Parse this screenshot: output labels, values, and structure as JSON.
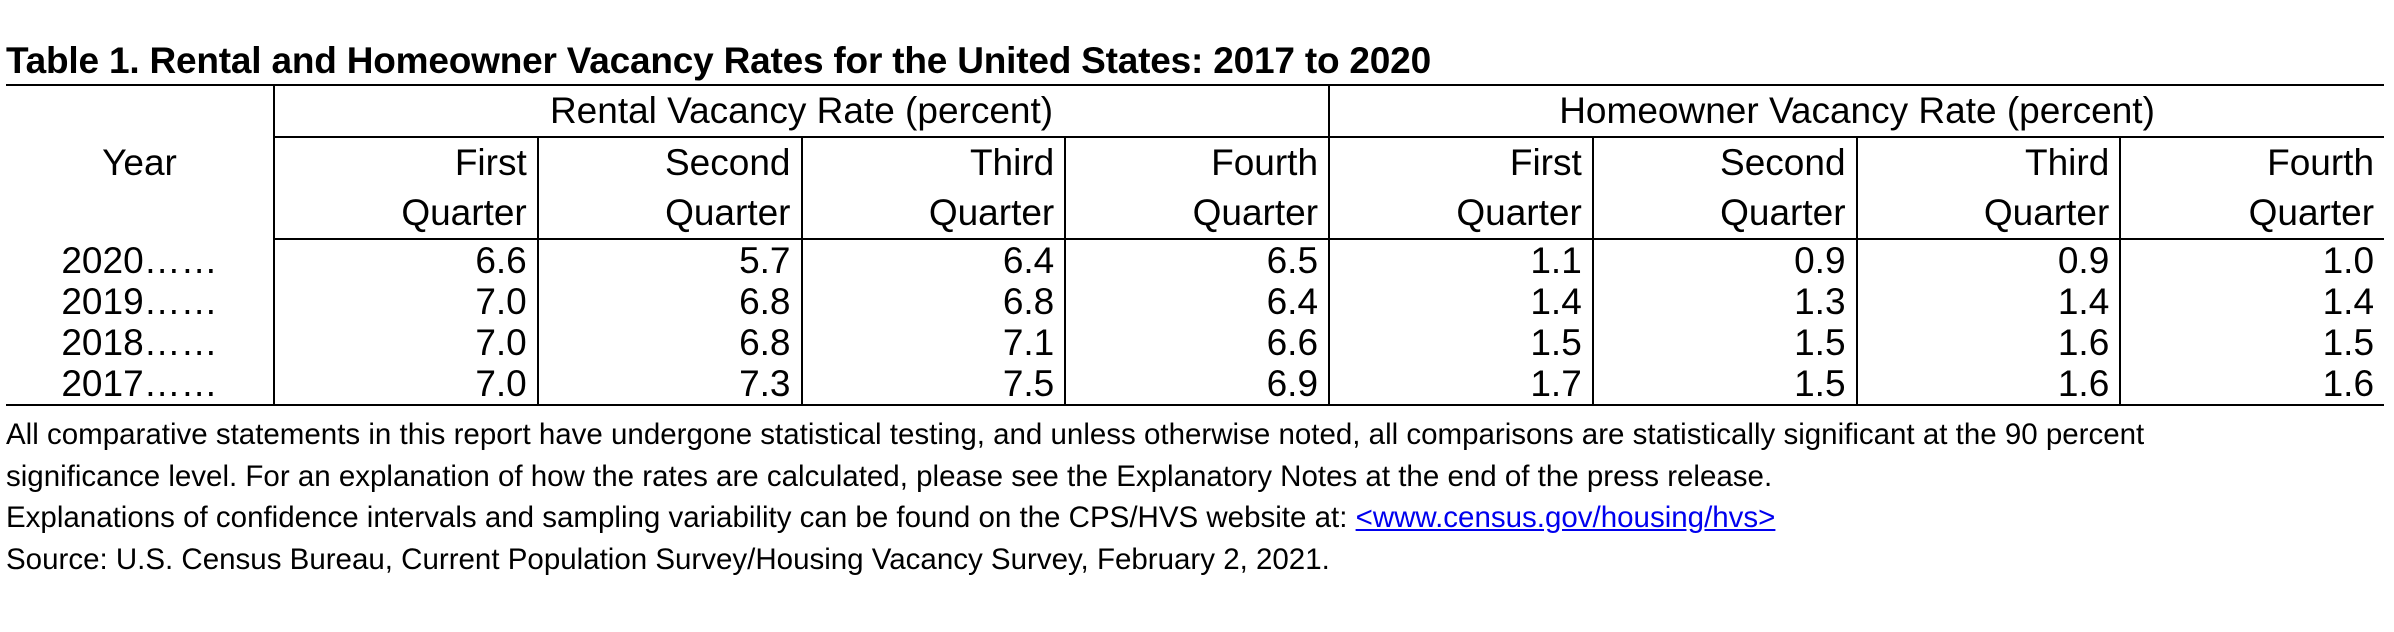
{
  "chart_data": {
    "type": "table",
    "title": "Table 1. Rental and Homeowner Vacancy Rates for the United States: 2017 to 2020",
    "year_header": "Year",
    "groups": [
      {
        "label": "Rental Vacancy Rate (percent)"
      },
      {
        "label": "Homeowner Vacancy Rate (percent)"
      }
    ],
    "quarters": [
      {
        "line1": "First",
        "line2": "Quarter"
      },
      {
        "line1": "Second",
        "line2": "Quarter"
      },
      {
        "line1": "Third",
        "line2": "Quarter"
      },
      {
        "line1": "Fourth",
        "line2": "Quarter"
      }
    ],
    "rows": [
      {
        "year": "2020……",
        "rental": [
          "6.6",
          "5.7",
          "6.4",
          "6.5"
        ],
        "homeowner": [
          "1.1",
          "0.9",
          "0.9",
          "1.0"
        ]
      },
      {
        "year": "2019……",
        "rental": [
          "7.0",
          "6.8",
          "6.8",
          "6.4"
        ],
        "homeowner": [
          "1.4",
          "1.3",
          "1.4",
          "1.4"
        ]
      },
      {
        "year": "2018……",
        "rental": [
          "7.0",
          "6.8",
          "7.1",
          "6.6"
        ],
        "homeowner": [
          "1.5",
          "1.5",
          "1.6",
          "1.5"
        ]
      },
      {
        "year": "2017……",
        "rental": [
          "7.0",
          "7.3",
          "7.5",
          "6.9"
        ],
        "homeowner": [
          "1.7",
          "1.5",
          "1.6",
          "1.6"
        ]
      }
    ]
  },
  "notes": {
    "line1": "All comparative statements in this report have undergone statistical testing, and unless otherwise noted, all comparisons are statistically significant at the 90 percent",
    "line2": "significance level. For an explanation of how the rates are calculated, please see the Explanatory Notes at the end of the press release.",
    "line3_text": "Explanations of confidence intervals and sampling variability can be found on the CPS/HVS website at: ",
    "line3_link": "<www.census.gov/housing/hvs>",
    "source": "Source: U.S. Census Bureau, Current Population Survey/Housing Vacancy Survey, February 2, 2021."
  },
  "colors": {
    "text": "#000000",
    "link": "#0000ee",
    "background": "#ffffff"
  }
}
